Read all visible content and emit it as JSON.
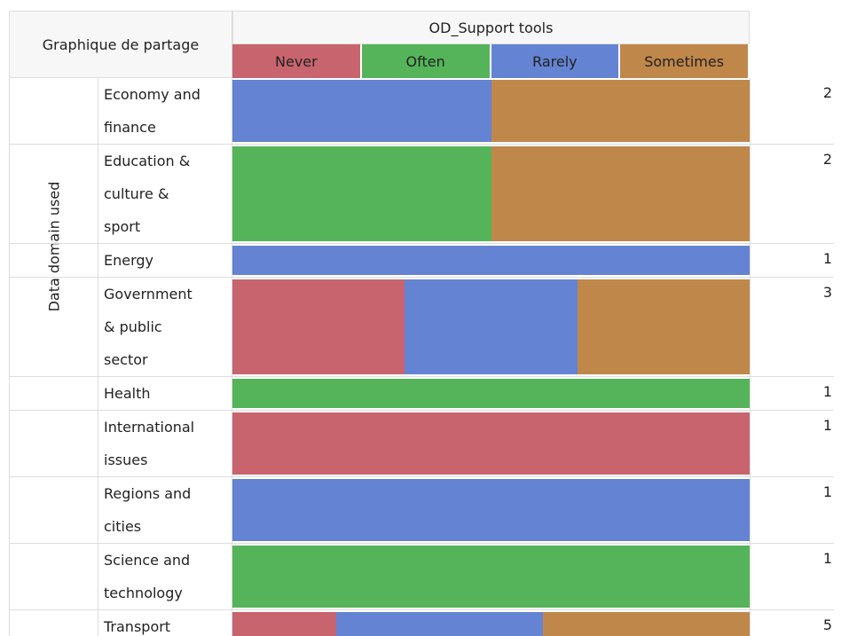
{
  "chart_data": {
    "type": "mosaic",
    "title": "Graphique de partage",
    "legend_title": "OD_Support tools",
    "y_label": "Data domain used",
    "categories": [
      "Economy and finance",
      "Education & culture & sport",
      "Energy",
      "Government & public sector",
      "Health",
      "International issues",
      "Regions and cities",
      "Science and technology",
      "Transport"
    ],
    "series": [
      {
        "name": "Never",
        "color": "#c8646e",
        "values": [
          0,
          0,
          0,
          1,
          0,
          1,
          0,
          0,
          1
        ]
      },
      {
        "name": "Often",
        "color": "#55b45a",
        "values": [
          0,
          1,
          0,
          0,
          1,
          0,
          0,
          1,
          0
        ]
      },
      {
        "name": "Rarely",
        "color": "#6483d2",
        "values": [
          1,
          0,
          1,
          1,
          0,
          0,
          1,
          0,
          2
        ]
      },
      {
        "name": "Sometimes",
        "color": "#c0874b",
        "values": [
          1,
          1,
          0,
          1,
          0,
          0,
          0,
          0,
          2
        ]
      }
    ],
    "totals": [
      2,
      2,
      1,
      3,
      1,
      1,
      1,
      1,
      5
    ]
  }
}
